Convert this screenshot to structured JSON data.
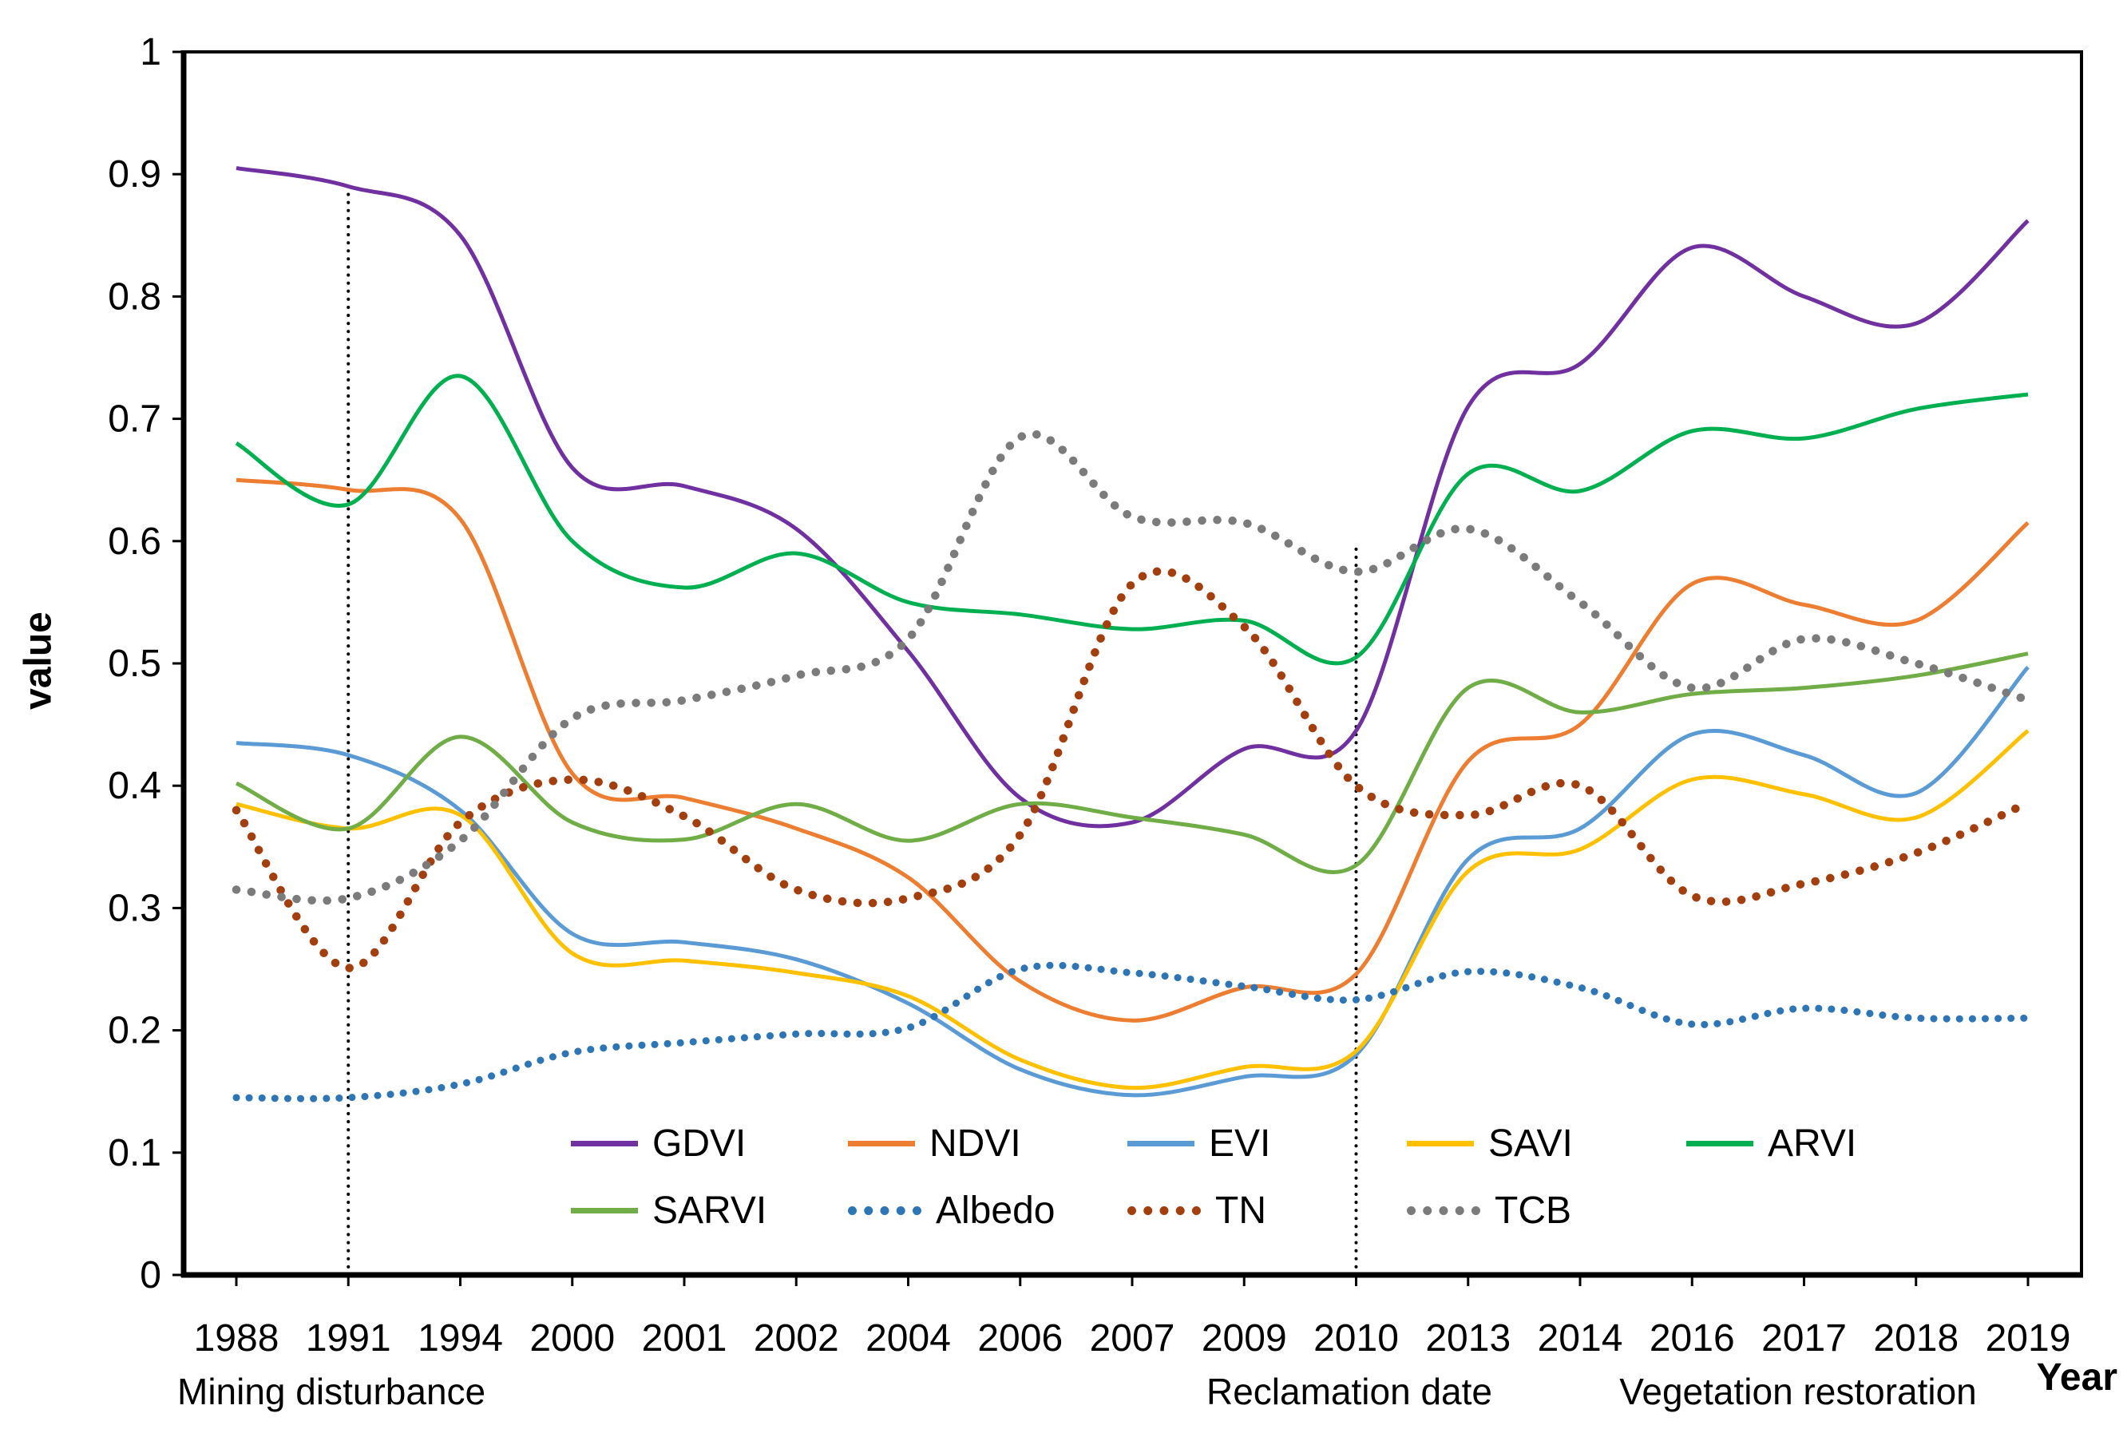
{
  "chart_data": {
    "type": "line",
    "title": "",
    "ylabel": "value",
    "xlabel": "Year",
    "ylim": [
      0,
      1
    ],
    "grid": false,
    "yticks": [
      {
        "value": 0,
        "label": "0"
      },
      {
        "value": 0.1,
        "label": "0.1"
      },
      {
        "value": 0.2,
        "label": "0.2"
      },
      {
        "value": 0.3,
        "label": "0.3"
      },
      {
        "value": 0.4,
        "label": "0.4"
      },
      {
        "value": 0.5,
        "label": "0.5"
      },
      {
        "value": 0.6,
        "label": "0.6"
      },
      {
        "value": 0.7,
        "label": "0.7"
      },
      {
        "value": 0.8,
        "label": "0.8"
      },
      {
        "value": 0.9,
        "label": "0.9"
      },
      {
        "value": 1,
        "label": "1"
      }
    ],
    "categories": [
      "1988",
      "1991",
      "1994",
      "2000",
      "2001",
      "2002",
      "2004",
      "2006",
      "2007",
      "2009",
      "2010",
      "2013",
      "2014",
      "2016",
      "2017",
      "2018",
      "2019"
    ],
    "series": [
      {
        "name": "GDVI",
        "color": "#7030A0",
        "style": "solid",
        "values": [
          0.905,
          0.89,
          0.85,
          0.66,
          0.645,
          0.61,
          0.51,
          0.39,
          0.37,
          0.43,
          0.445,
          0.71,
          0.745,
          0.84,
          0.8,
          0.778,
          0.862
        ]
      },
      {
        "name": "NDVI",
        "color": "#ED7D31",
        "style": "solid",
        "values": [
          0.65,
          0.642,
          0.618,
          0.41,
          0.39,
          0.365,
          0.325,
          0.24,
          0.208,
          0.235,
          0.246,
          0.42,
          0.45,
          0.565,
          0.548,
          0.535,
          0.615
        ]
      },
      {
        "name": "EVI",
        "color": "#5B9BD5",
        "style": "solid",
        "values": [
          0.435,
          0.425,
          0.38,
          0.279,
          0.272,
          0.258,
          0.222,
          0.168,
          0.147,
          0.162,
          0.18,
          0.34,
          0.365,
          0.442,
          0.425,
          0.394,
          0.497
        ]
      },
      {
        "name": "SAVI",
        "color": "#FFC000",
        "style": "solid",
        "values": [
          0.385,
          0.365,
          0.376,
          0.263,
          0.257,
          0.247,
          0.228,
          0.176,
          0.153,
          0.17,
          0.183,
          0.33,
          0.348,
          0.405,
          0.393,
          0.374,
          0.445
        ]
      },
      {
        "name": "ARVI",
        "color": "#00B050",
        "style": "solid",
        "values": [
          0.68,
          0.63,
          0.735,
          0.6,
          0.562,
          0.59,
          0.55,
          0.54,
          0.528,
          0.535,
          0.505,
          0.655,
          0.641,
          0.69,
          0.684,
          0.708,
          0.72
        ]
      },
      {
        "name": "SARVI",
        "color": "#70AD47",
        "style": "solid",
        "values": [
          0.402,
          0.365,
          0.44,
          0.37,
          0.356,
          0.385,
          0.355,
          0.385,
          0.374,
          0.36,
          0.335,
          0.48,
          0.46,
          0.475,
          0.48,
          0.49,
          0.508
        ]
      },
      {
        "name": "Albedo",
        "color": "#2E75B6",
        "style": "dotted",
        "values": [
          0.145,
          0.145,
          0.156,
          0.182,
          0.19,
          0.197,
          0.202,
          0.25,
          0.247,
          0.236,
          0.225,
          0.248,
          0.235,
          0.205,
          0.218,
          0.21,
          0.21
        ]
      },
      {
        "name": "TN",
        "color": "#A33E0F",
        "style": "dotted",
        "values": [
          0.38,
          0.251,
          0.37,
          0.405,
          0.375,
          0.315,
          0.308,
          0.36,
          0.565,
          0.53,
          0.4,
          0.376,
          0.4,
          0.31,
          0.32,
          0.345,
          0.386
        ]
      },
      {
        "name": "TCB",
        "color": "#7B7B7B",
        "style": "dotted",
        "values": [
          0.315,
          0.308,
          0.355,
          0.455,
          0.47,
          0.49,
          0.52,
          0.685,
          0.62,
          0.615,
          0.575,
          0.61,
          0.55,
          0.48,
          0.52,
          0.5,
          0.47
        ]
      }
    ],
    "event_lines": [
      {
        "at": "1991",
        "top_value": 0.885
      },
      {
        "at": "2010",
        "top_value": 0.595
      }
    ],
    "annotations": {
      "mining": "Mining disturbance",
      "reclamation": "Reclamation date",
      "vegetation": "Vegetation restoration"
    },
    "legend": {
      "rows": [
        [
          "GDVI",
          "NDVI",
          "EVI",
          "SAVI",
          "ARVI"
        ],
        [
          "SARVI",
          "Albedo",
          "TN",
          "TCB"
        ]
      ],
      "position": "inside-bottom"
    }
  }
}
